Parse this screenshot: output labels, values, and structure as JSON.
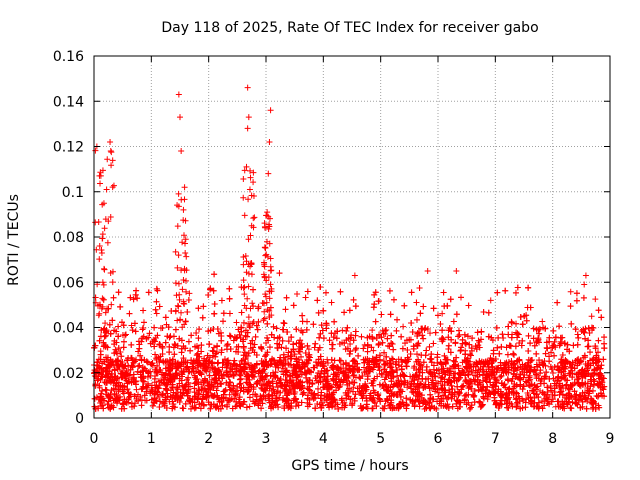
{
  "chart_data": {
    "type": "scatter",
    "title": "Day 118 of 2025, Rate Of TEC Index for receiver gabo",
    "xlabel": "GPS time / hours",
    "ylabel": "ROTI / TECUs",
    "xlim": [
      0,
      9
    ],
    "ylim": [
      0,
      0.16
    ],
    "x_ticks": [
      "0",
      "1",
      "2",
      "3",
      "4",
      "5",
      "6",
      "7",
      "8",
      "9"
    ],
    "y_ticks": [
      "0",
      "0.02",
      "0.04",
      "0.06",
      "0.08",
      "0.1",
      "0.12",
      "0.14",
      "0.16"
    ],
    "grid": true,
    "marker": "+",
    "color": "#ff0000",
    "x_extent": [
      0,
      8.9
    ],
    "spikes": [
      {
        "x": 0.05,
        "y": 0.12
      },
      {
        "x": 0.12,
        "y": 0.107
      },
      {
        "x": 0.22,
        "y": 0.101
      },
      {
        "x": 0.28,
        "y": 0.122
      },
      {
        "x": 0.25,
        "y": 0.087
      },
      {
        "x": 0.1,
        "y": 0.076
      },
      {
        "x": 1.48,
        "y": 0.143
      },
      {
        "x": 1.5,
        "y": 0.133
      },
      {
        "x": 1.52,
        "y": 0.118
      },
      {
        "x": 1.58,
        "y": 0.102
      },
      {
        "x": 1.56,
        "y": 0.092
      },
      {
        "x": 1.6,
        "y": 0.079
      },
      {
        "x": 2.68,
        "y": 0.146
      },
      {
        "x": 2.7,
        "y": 0.133
      },
      {
        "x": 2.68,
        "y": 0.128
      },
      {
        "x": 2.66,
        "y": 0.111
      },
      {
        "x": 2.72,
        "y": 0.101
      },
      {
        "x": 2.75,
        "y": 0.085
      },
      {
        "x": 3.08,
        "y": 0.136
      },
      {
        "x": 3.06,
        "y": 0.122
      },
      {
        "x": 3.04,
        "y": 0.108
      },
      {
        "x": 3.02,
        "y": 0.091
      },
      {
        "x": 6.32,
        "y": 0.065
      },
      {
        "x": 8.58,
        "y": 0.063
      },
      {
        "x": 8.55,
        "y": 0.059
      },
      {
        "x": 8.68,
        "y": 0.045
      },
      {
        "x": 6.92,
        "y": 0.052
      },
      {
        "x": 4.55,
        "y": 0.063
      },
      {
        "x": 5.82,
        "y": 0.065
      }
    ]
  }
}
